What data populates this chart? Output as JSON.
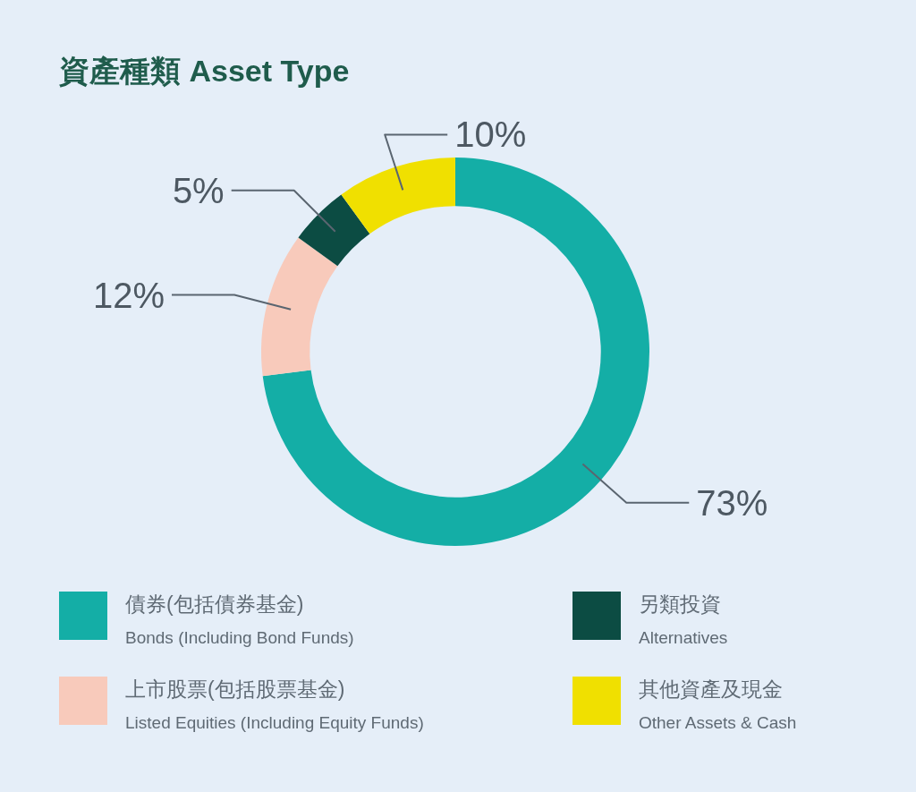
{
  "chart_data": {
    "type": "donut",
    "title": "資產種類 Asset Type",
    "categories": [
      "債券(包括債券基金)\nBonds (Including Bond Funds)",
      "上市股票(包括股票基金)\nListed Equities (Including Equity Funds)",
      "另類投資\nAlternatives",
      "其他資產及現金\nOther Assets & Cash"
    ],
    "values": [
      73,
      12,
      5,
      10
    ],
    "colors": [
      "#14aea6",
      "#f8cabb",
      "#0c4c43",
      "#f0e000"
    ],
    "value_labels": [
      "73%",
      "12%",
      "5%",
      "10%"
    ],
    "legend": "bottom"
  }
}
